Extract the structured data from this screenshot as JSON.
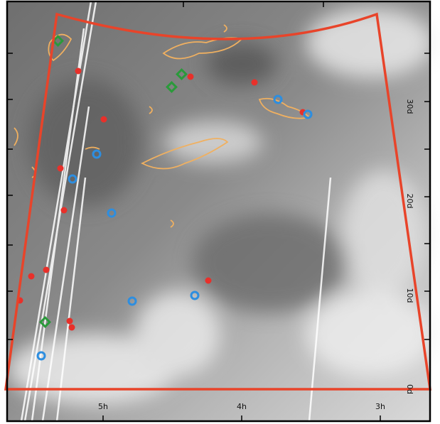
{
  "axes": {
    "ra_labels": [
      "5h",
      "4h",
      "3h"
    ],
    "dec_labels": [
      "30d",
      "20d",
      "10d",
      "0d"
    ]
  }
}
